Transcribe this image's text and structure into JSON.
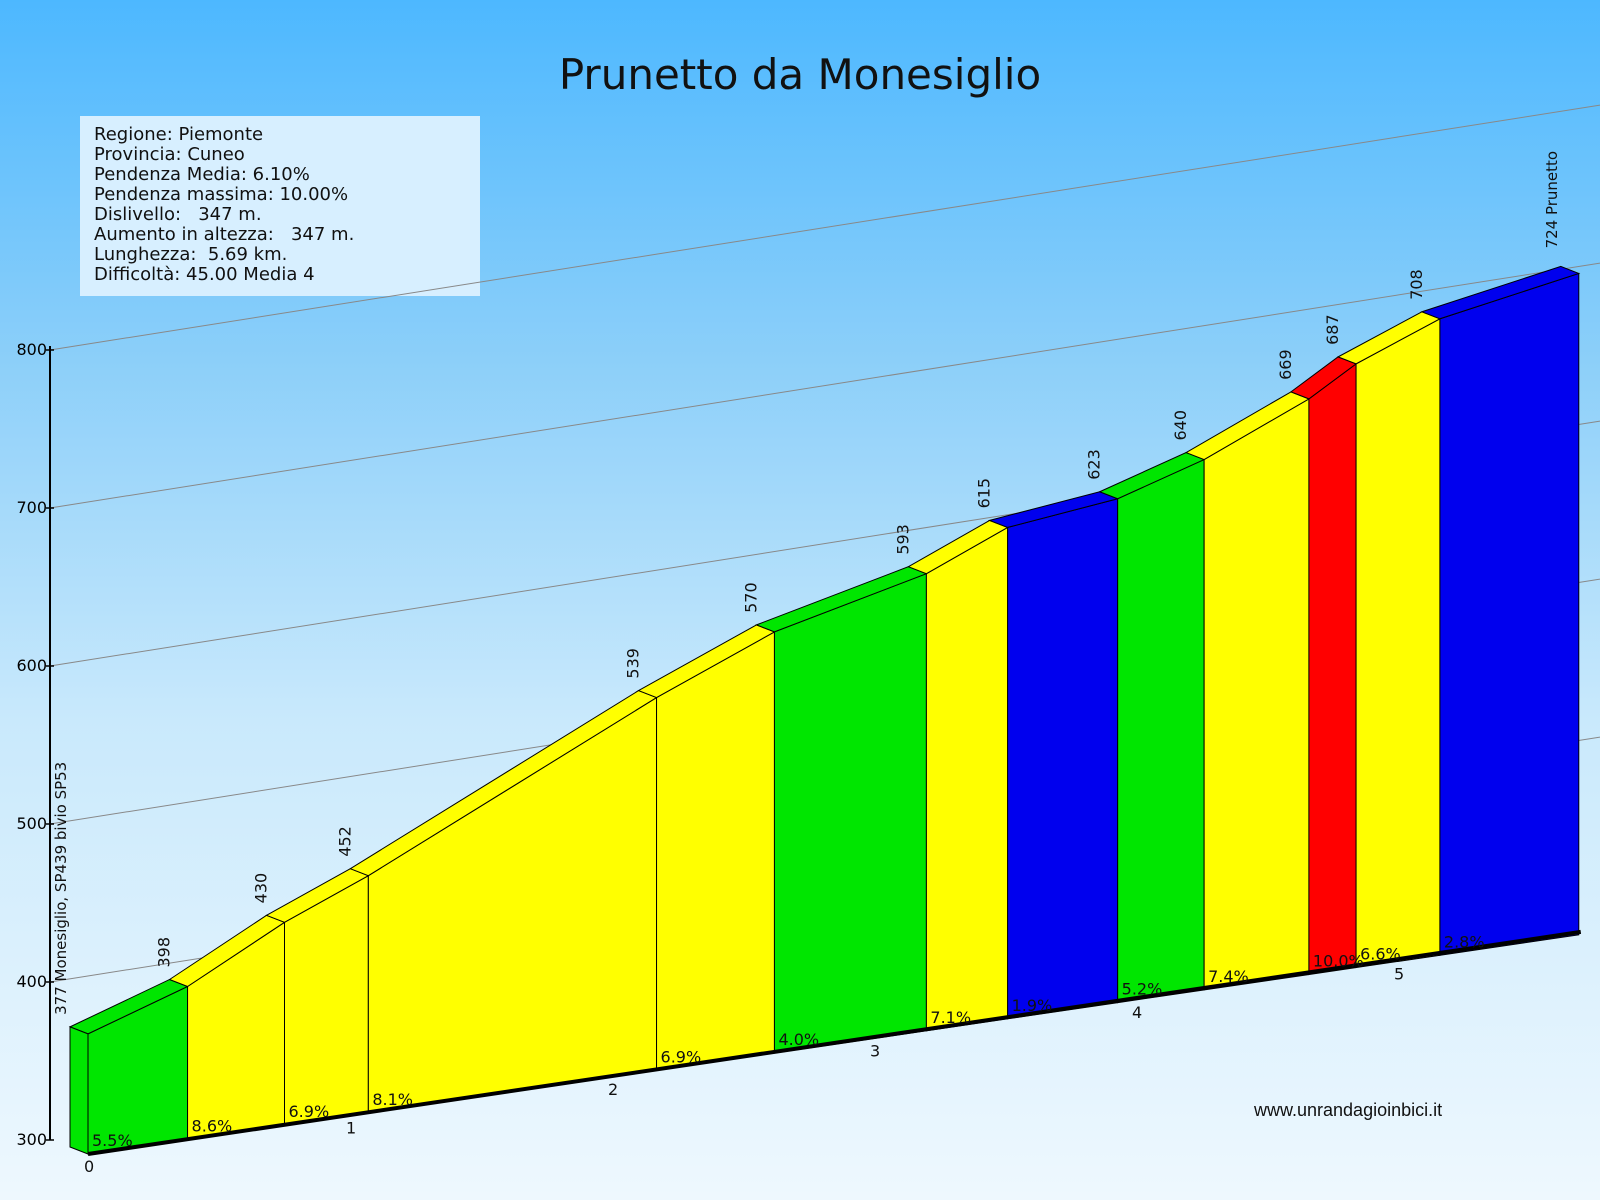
{
  "title": "Prunetto da Monesiglio",
  "info": [
    "Regione: Piemonte",
    "Provincia: Cuneo",
    "Pendenza Media: 6.10%",
    "Pendenza massima: 10.00%",
    "Dislivello:   347 m.",
    "Aumento in altezza:   347 m.",
    "Lunghezza:  5.69 km.",
    "Difficoltà: 45.00 Media 4"
  ],
  "website": "www.unrandagioinbici.it",
  "colors": {
    "green": "#00e600",
    "yellow": "#ffff00",
    "blue": "#0000ee",
    "red": "#ff0000"
  },
  "chart_data": {
    "type": "area",
    "title": "Prunetto da Monesiglio",
    "x_unit": "km",
    "y_unit": "m",
    "ylim": [
      300,
      800
    ],
    "y_ticks": [
      "300",
      "400",
      "500",
      "600",
      "700",
      "800"
    ],
    "km_ticks": [
      "0",
      "1",
      "2",
      "3",
      "4",
      "5"
    ],
    "start_label": "377 Monesiglio, SP439 bivio SP53",
    "end_label": "724 Prunetto",
    "points": [
      {
        "km": 0.0,
        "alt": 377,
        "label": ""
      },
      {
        "km": 0.38,
        "alt": 398,
        "label": "398"
      },
      {
        "km": 0.75,
        "alt": 430,
        "label": "430"
      },
      {
        "km": 1.07,
        "alt": 452,
        "label": "452"
      },
      {
        "km": 2.17,
        "alt": 539,
        "label": "539"
      },
      {
        "km": 2.62,
        "alt": 570,
        "label": "570"
      },
      {
        "km": 3.2,
        "alt": 593,
        "label": "593"
      },
      {
        "km": 3.51,
        "alt": 615,
        "label": "615"
      },
      {
        "km": 3.93,
        "alt": 623,
        "label": "623"
      },
      {
        "km": 4.26,
        "alt": 640,
        "label": "640"
      },
      {
        "km": 4.66,
        "alt": 669,
        "label": "669"
      },
      {
        "km": 4.84,
        "alt": 687,
        "label": "687"
      },
      {
        "km": 5.16,
        "alt": 708,
        "label": "708"
      },
      {
        "km": 5.69,
        "alt": 724,
        "label": "724"
      }
    ],
    "segments": [
      {
        "grade": "5.5%",
        "color": "green"
      },
      {
        "grade": "8.6%",
        "color": "yellow"
      },
      {
        "grade": "6.9%",
        "color": "yellow"
      },
      {
        "grade": "8.1%",
        "color": "yellow"
      },
      {
        "grade": "6.9%",
        "color": "yellow"
      },
      {
        "grade": "4.0%",
        "color": "green"
      },
      {
        "grade": "7.1%",
        "color": "yellow"
      },
      {
        "grade": "1.9%",
        "color": "blue"
      },
      {
        "grade": "5.2%",
        "color": "green"
      },
      {
        "grade": "7.4%",
        "color": "yellow"
      },
      {
        "grade": "10.0%",
        "color": "red"
      },
      {
        "grade": "6.6%",
        "color": "yellow"
      },
      {
        "grade": "2.8%",
        "color": "blue"
      }
    ]
  }
}
